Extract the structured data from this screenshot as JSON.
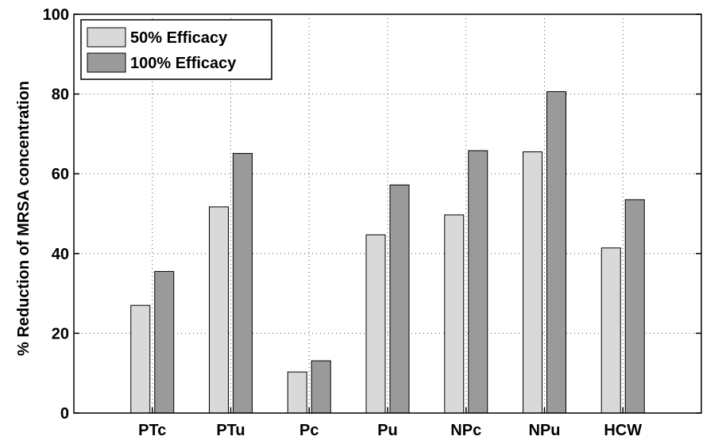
{
  "chart_data": {
    "type": "bar",
    "title": "",
    "xlabel": "",
    "ylabel": "% Reduction of MRSA concentration",
    "categories": [
      "PTc",
      "PTu",
      "Pc",
      "Pu",
      "NPc",
      "NPu",
      "HCW"
    ],
    "series": [
      {
        "name": "50% Efficacy",
        "values": [
          27,
          51.7,
          10.3,
          44.7,
          49.7,
          65.5,
          41.4
        ],
        "color": "#d9d9d9"
      },
      {
        "name": "100% Efficacy",
        "values": [
          35.5,
          65.1,
          13.1,
          57.2,
          65.8,
          80.6,
          53.5
        ],
        "color": "#9a9a9a"
      }
    ],
    "ylim": [
      0,
      100
    ],
    "yticks": [
      0,
      20,
      40,
      60,
      80,
      100
    ],
    "grid": true,
    "legend_position": "top-left"
  }
}
